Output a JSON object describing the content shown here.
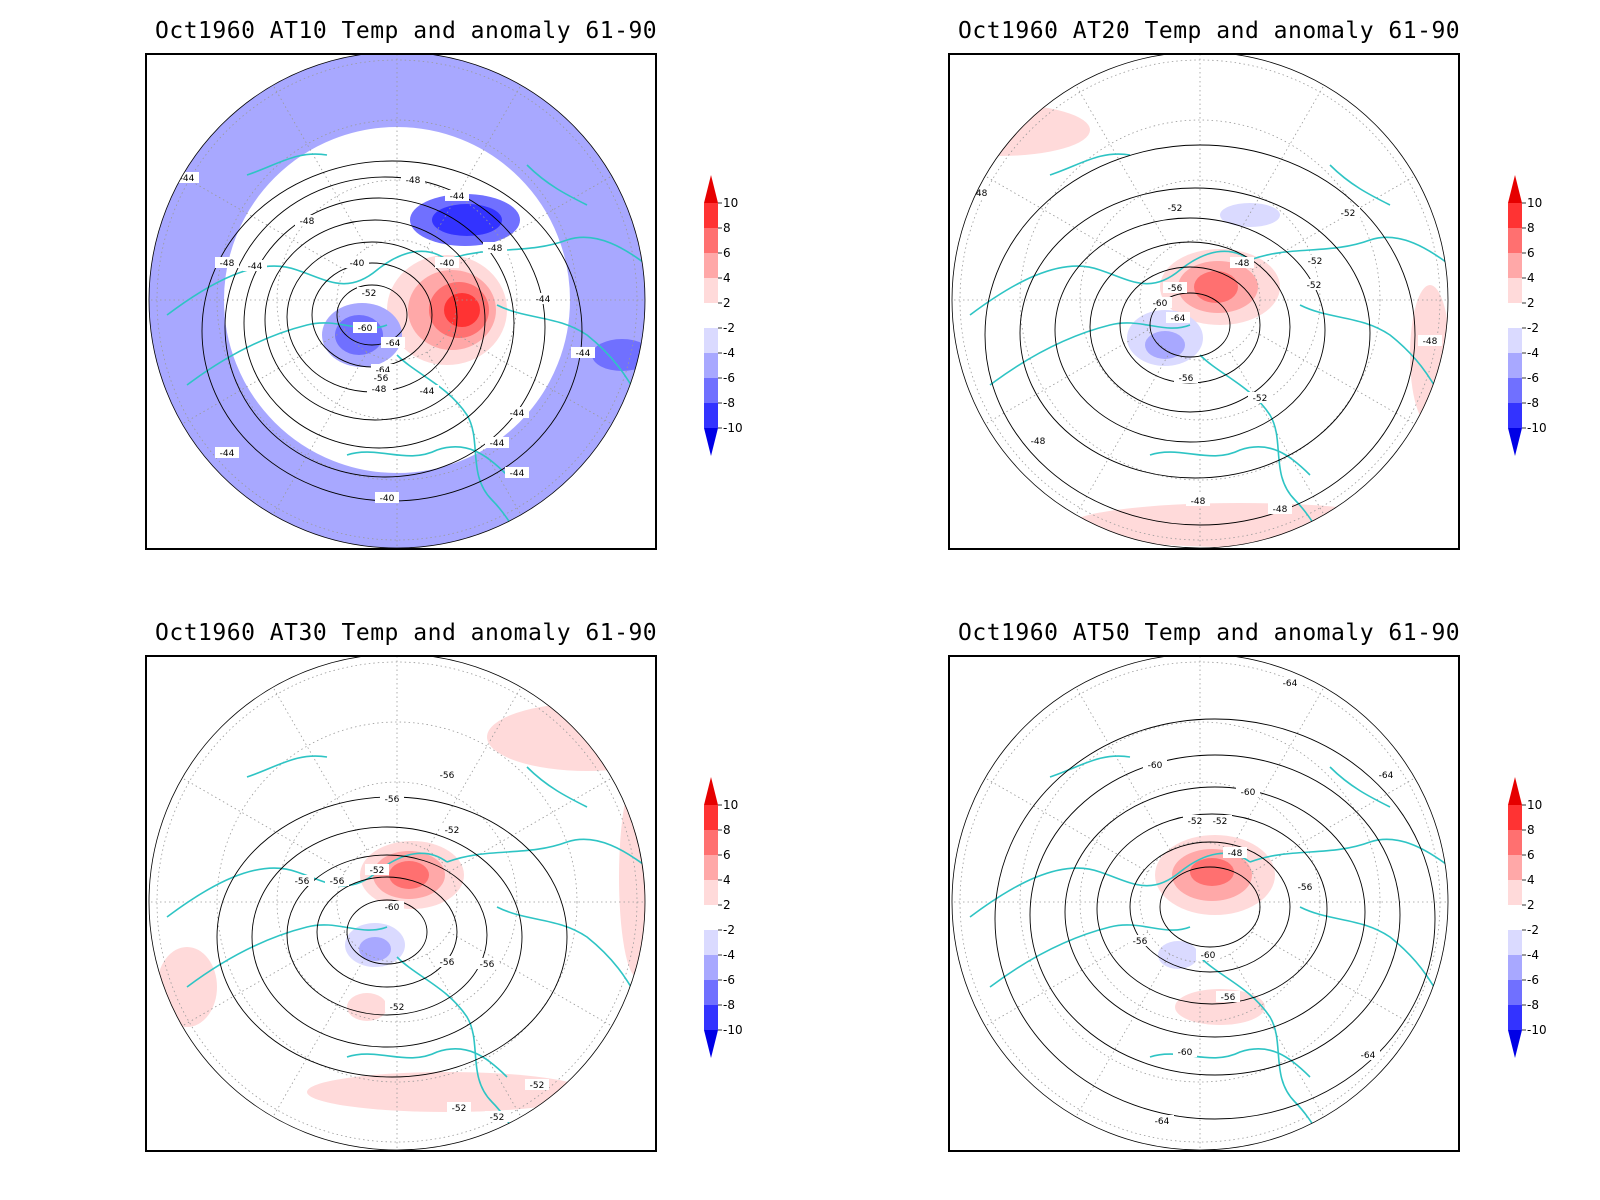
{
  "figure": {
    "colorbar": {
      "levels": [
        "10",
        "8",
        "6",
        "4",
        "2",
        "-2",
        "-4",
        "-6",
        "-8",
        "-10"
      ],
      "colors": [
        "#e60000",
        "#ff3333",
        "#ff7070",
        "#ffa8a8",
        "#ffdada",
        "#ffffff",
        "#dadaff",
        "#a8a8ff",
        "#7070ff",
        "#3333ff",
        "#0000e6"
      ]
    },
    "land_color": "#2ec4c4",
    "panels": [
      {
        "title": "Oct1960 AT10 Temp and anomaly 61-90",
        "contour_labels": [
          "-44",
          "-44",
          "-48",
          "-48",
          "-48",
          "-48",
          "-44",
          "-40",
          "-52",
          "-60",
          "-64",
          "-64",
          "-56",
          "-52",
          "-48",
          "-44",
          "-40",
          "-44",
          "-44",
          "-44",
          "-44",
          "-40",
          "-44",
          "-44"
        ]
      },
      {
        "title": "Oct1960 AT20 Temp and anomaly 61-90",
        "contour_labels": [
          "-48",
          "-52",
          "-52",
          "-48",
          "-52",
          "-52",
          "-56",
          "-60",
          "-64",
          "-56",
          "-52",
          "-48",
          "-48",
          "-48",
          "-48"
        ]
      },
      {
        "title": "Oct1960 AT30 Temp and anomaly 61-90",
        "contour_labels": [
          "-56",
          "-56",
          "-52",
          "-52",
          "-56",
          "-56",
          "-60",
          "-56",
          "-56",
          "-52",
          "-52",
          "-52",
          "-52"
        ]
      },
      {
        "title": "Oct1960 AT50 Temp and anomaly 61-90",
        "contour_labels": [
          "-64",
          "-60",
          "-60",
          "-52",
          "-52",
          "-48",
          "-56",
          "-56",
          "-60",
          "-56",
          "-60",
          "-64",
          "-64",
          "-64"
        ]
      }
    ]
  }
}
